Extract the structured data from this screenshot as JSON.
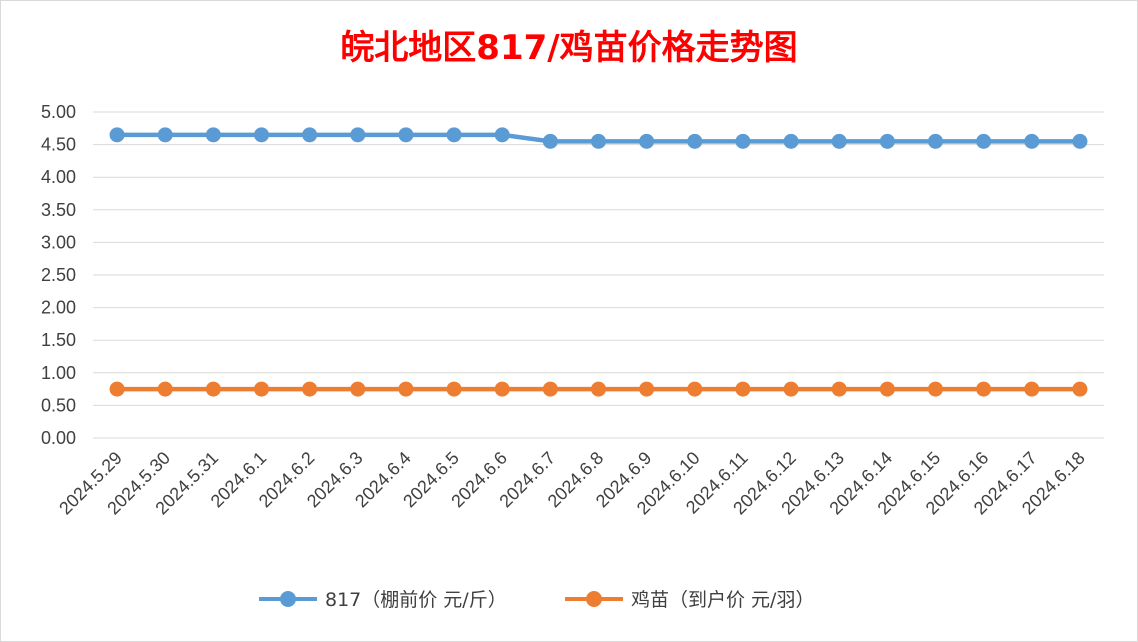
{
  "chart_data": {
    "type": "line",
    "title": "皖北地区817/鸡苗价格走势图",
    "xlabel": "",
    "ylabel": "",
    "categories": [
      "2024.5.29",
      "2024.5.30",
      "2024.5.31",
      "2024.6.1",
      "2024.6.2",
      "2024.6.3",
      "2024.6.4",
      "2024.6.5",
      "2024.6.6",
      "2024.6.7",
      "2024.6.8",
      "2024.6.9",
      "2024.6.10",
      "2024.6.11",
      "2024.6.12",
      "2024.6.13",
      "2024.6.14",
      "2024.6.15",
      "2024.6.16",
      "2024.6.17",
      "2024.6.18"
    ],
    "ylim": [
      0,
      5
    ],
    "yticks": [
      "0.00",
      "0.50",
      "1.00",
      "1.50",
      "2.00",
      "2.50",
      "3.00",
      "3.50",
      "4.00",
      "4.50",
      "5.00"
    ],
    "grid": true,
    "legend_position": "bottom",
    "series": [
      {
        "name": "817（棚前价 元/斤）",
        "color": "#5b9bd5",
        "values": [
          4.65,
          4.65,
          4.65,
          4.65,
          4.65,
          4.65,
          4.65,
          4.65,
          4.65,
          4.55,
          4.55,
          4.55,
          4.55,
          4.55,
          4.55,
          4.55,
          4.55,
          4.55,
          4.55,
          4.55,
          4.55
        ]
      },
      {
        "name": "鸡苗（到户价 元/羽）",
        "color": "#ed7d31",
        "values": [
          0.75,
          0.75,
          0.75,
          0.75,
          0.75,
          0.75,
          0.75,
          0.75,
          0.75,
          0.75,
          0.75,
          0.75,
          0.75,
          0.75,
          0.75,
          0.75,
          0.75,
          0.75,
          0.75,
          0.75,
          0.75
        ]
      }
    ]
  }
}
